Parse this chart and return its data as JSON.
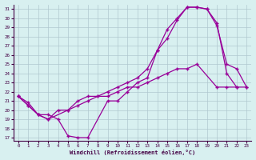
{
  "xlabel": "Windchill (Refroidissement éolien,°C)",
  "background_color": "#d8f0f0",
  "grid_color": "#b0c8d0",
  "line_color": "#990099",
  "xlim": [
    -0.5,
    23.5
  ],
  "ylim": [
    16.7,
    31.5
  ],
  "yticks": [
    17,
    18,
    19,
    20,
    21,
    22,
    23,
    24,
    25,
    26,
    27,
    28,
    29,
    30,
    31
  ],
  "xticks": [
    0,
    1,
    2,
    3,
    4,
    5,
    6,
    7,
    8,
    9,
    10,
    11,
    12,
    13,
    14,
    15,
    16,
    17,
    18,
    19,
    20,
    21,
    22,
    23
  ],
  "curve1_x": [
    0,
    1,
    2,
    3,
    4,
    5,
    6,
    7,
    9,
    10,
    11,
    12,
    13,
    14,
    15,
    16,
    17,
    18,
    19,
    20,
    21,
    22,
    23
  ],
  "curve1_y": [
    21.5,
    20.8,
    19.5,
    19.5,
    19.0,
    17.2,
    17.0,
    17.0,
    21.0,
    21.0,
    22.0,
    23.0,
    23.5,
    26.5,
    27.8,
    29.8,
    31.2,
    31.2,
    31.0,
    29.2,
    25.0,
    24.5,
    22.5
  ],
  "curve2_x": [
    0,
    1,
    2,
    3,
    5,
    6,
    7,
    8,
    9,
    10,
    11,
    12,
    13,
    14,
    15,
    16,
    17,
    18,
    20,
    21,
    22,
    23
  ],
  "curve2_y": [
    21.5,
    20.5,
    19.5,
    19.0,
    20.0,
    20.5,
    21.0,
    21.5,
    21.5,
    22.0,
    22.5,
    22.5,
    23.0,
    23.5,
    24.0,
    24.5,
    24.5,
    25.0,
    22.5,
    22.5,
    22.5,
    22.5
  ],
  "curve3_x": [
    0,
    1,
    2,
    3,
    4,
    5,
    6,
    7,
    8,
    9,
    10,
    11,
    12,
    13,
    14,
    15,
    16,
    17,
    18,
    19,
    20,
    21,
    22
  ],
  "curve3_y": [
    21.5,
    20.5,
    19.5,
    19.0,
    20.0,
    20.0,
    21.0,
    21.5,
    21.5,
    22.0,
    22.5,
    23.0,
    23.5,
    24.5,
    26.5,
    28.8,
    30.0,
    31.2,
    31.2,
    31.0,
    29.5,
    24.0,
    22.5
  ]
}
